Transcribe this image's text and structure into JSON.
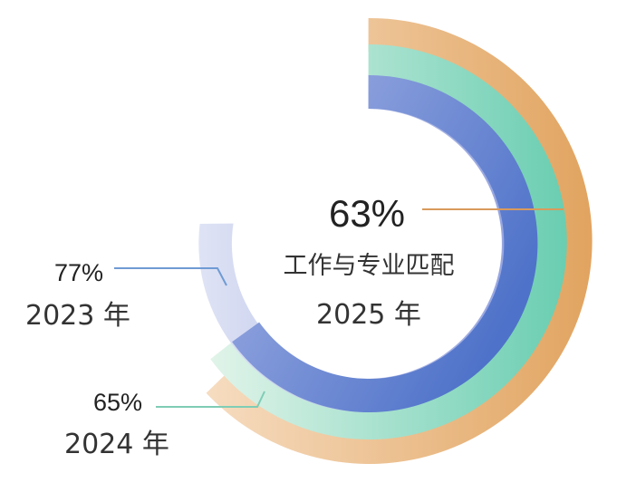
{
  "chart_data": {
    "type": "radial-bar",
    "title": "",
    "series": [
      {
        "label": "2025 年",
        "value": 63,
        "value_label": "63%",
        "caption": "工作与专业匹配",
        "colors": [
          "#8c9fdc",
          "#4e72c9"
        ]
      },
      {
        "label": "2024 年",
        "value": 65,
        "value_label": "65%",
        "colors": [
          "#e2f4ea",
          "#68cdb0"
        ]
      },
      {
        "label": "2023 年",
        "value": 77,
        "value_label": "77%",
        "colors": [
          "#dfe3f5",
          "#8e9ddc"
        ]
      }
    ],
    "extra_rings": [
      {
        "colors": [
          "#f6dcc0",
          "#e1a35e"
        ]
      }
    ],
    "colors": {
      "leader_2025": "#d99a5c",
      "leader_2024": "#7fcdb5",
      "leader_2023": "#6f9bd4"
    }
  }
}
